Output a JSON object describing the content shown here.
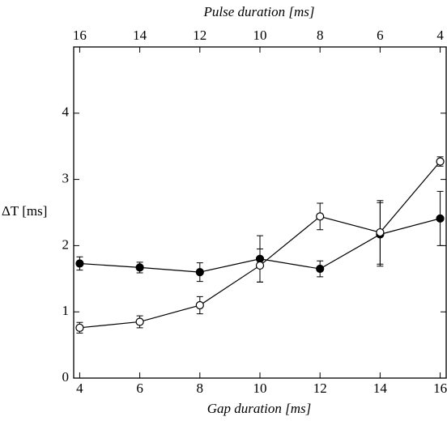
{
  "chart_data": {
    "type": "line",
    "x_label": "Gap duration [ms]",
    "x2_label": "Pulse duration [ms]",
    "y_label": "ΔT [ms]",
    "x": [
      4,
      6,
      8,
      10,
      12,
      14,
      16
    ],
    "xlim": [
      3.8,
      16.2
    ],
    "xticks": [
      4,
      6,
      8,
      10,
      12,
      14,
      16
    ],
    "x2lim": [
      16.2,
      3.8
    ],
    "x2ticks": [
      16,
      14,
      12,
      10,
      8,
      6,
      4
    ],
    "ylim": [
      0,
      5
    ],
    "yticks": [
      0,
      1,
      2,
      3,
      4
    ],
    "series": [
      {
        "color": "#000000",
        "marker": "filled",
        "values": [
          1.73,
          1.67,
          1.6,
          1.8,
          1.65,
          2.17,
          2.41
        ],
        "errors": [
          0.1,
          0.08,
          0.14,
          0.35,
          0.12,
          0.48,
          0.41
        ]
      },
      {
        "color": "#000000",
        "marker": "open",
        "values": [
          0.76,
          0.85,
          1.1,
          1.7,
          2.44,
          2.2,
          3.27
        ],
        "errors": [
          0.08,
          0.09,
          0.13,
          0.25,
          0.2,
          0.48,
          0.07
        ]
      }
    ]
  }
}
